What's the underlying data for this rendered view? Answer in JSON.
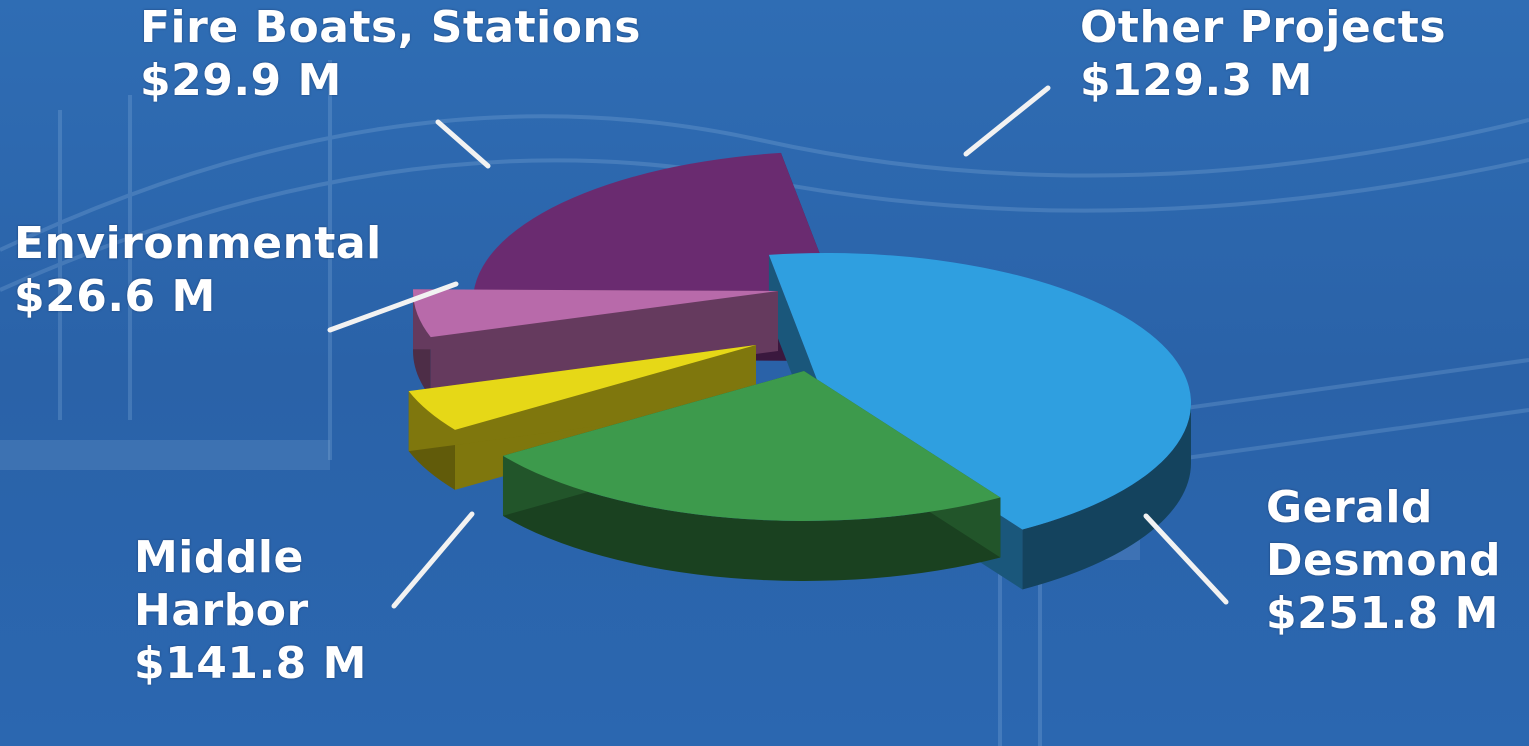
{
  "chart_data": {
    "type": "pie",
    "title": "",
    "unit": "$ M",
    "slices": [
      {
        "label_lines": [
          "Gerald",
          "Desmond"
        ],
        "value_text": "$251.8 M",
        "value": 251.8,
        "color": "#2f9fe0"
      },
      {
        "label_lines": [
          "Middle",
          "Harbor"
        ],
        "value_text": "$141.8 M",
        "value": 141.8,
        "color": "#3d9a4c"
      },
      {
        "label_lines": [
          "Environmental"
        ],
        "value_text": "$26.6 M",
        "value": 26.6,
        "color": "#e6d817"
      },
      {
        "label_lines": [
          "Fire Boats, Stations"
        ],
        "value_text": "$29.9 M",
        "value": 29.9,
        "color": "#b86aaa"
      },
      {
        "label_lines": [
          "Other Projects"
        ],
        "value_text": "$129.3 M",
        "value": 129.3,
        "color": "#6a2b70"
      }
    ]
  }
}
